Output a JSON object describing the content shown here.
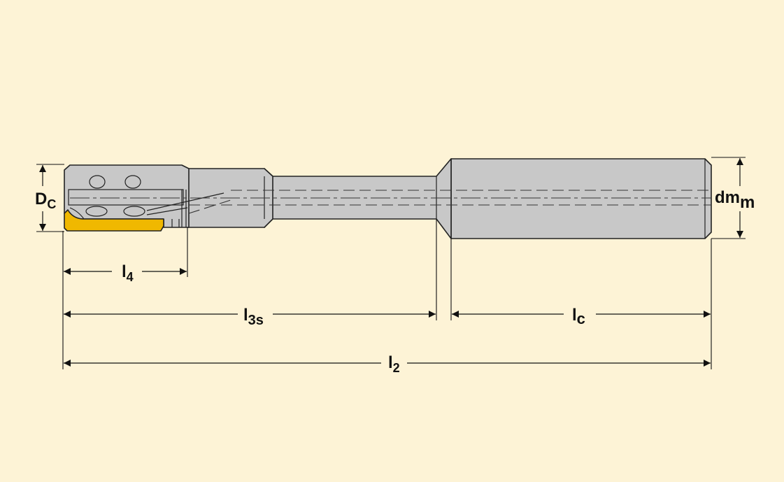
{
  "colors": {
    "background": "#fdf3d6",
    "tool_body": "#c8c8c8",
    "insert": "#f0b800",
    "outline": "#222222",
    "dimension": "#111111"
  },
  "labels": {
    "dc": {
      "main": "D",
      "sub": "C"
    },
    "dmm": {
      "main": "dm",
      "sub": "m"
    },
    "l4": {
      "main": "l",
      "sub": "4"
    },
    "l3s": {
      "main": "l",
      "sub": "3s"
    },
    "lc": {
      "main": "l",
      "sub": "c"
    },
    "l2": {
      "main": "l",
      "sub": "2"
    }
  }
}
